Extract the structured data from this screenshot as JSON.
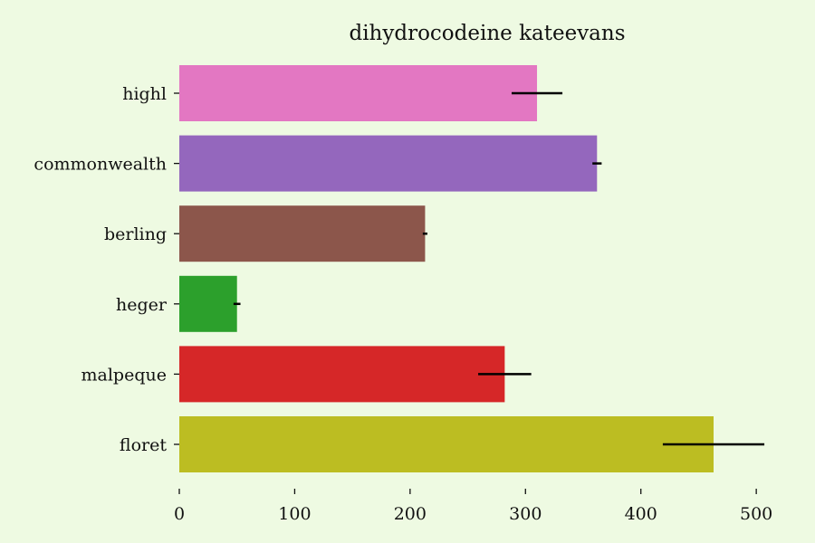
{
  "chart_data": {
    "type": "bar",
    "orientation": "horizontal",
    "title": "dihydrocodeine kateevans",
    "xlabel": "",
    "ylabel": "",
    "categories": [
      "highl",
      "commonwealth",
      "berling",
      "heger",
      "malpeque",
      "floret"
    ],
    "values": [
      310,
      362,
      213,
      50,
      282,
      463
    ],
    "errors": [
      22,
      4,
      2,
      3,
      23,
      44
    ],
    "colors": [
      "#e377c2",
      "#9467bd",
      "#8c564b",
      "#2ca02c",
      "#d62728",
      "#bcbd22"
    ],
    "xlim": [
      0,
      525
    ],
    "xticks": [
      0,
      100,
      200,
      300,
      400,
      500
    ],
    "grid": false,
    "background": "#eefae2"
  }
}
